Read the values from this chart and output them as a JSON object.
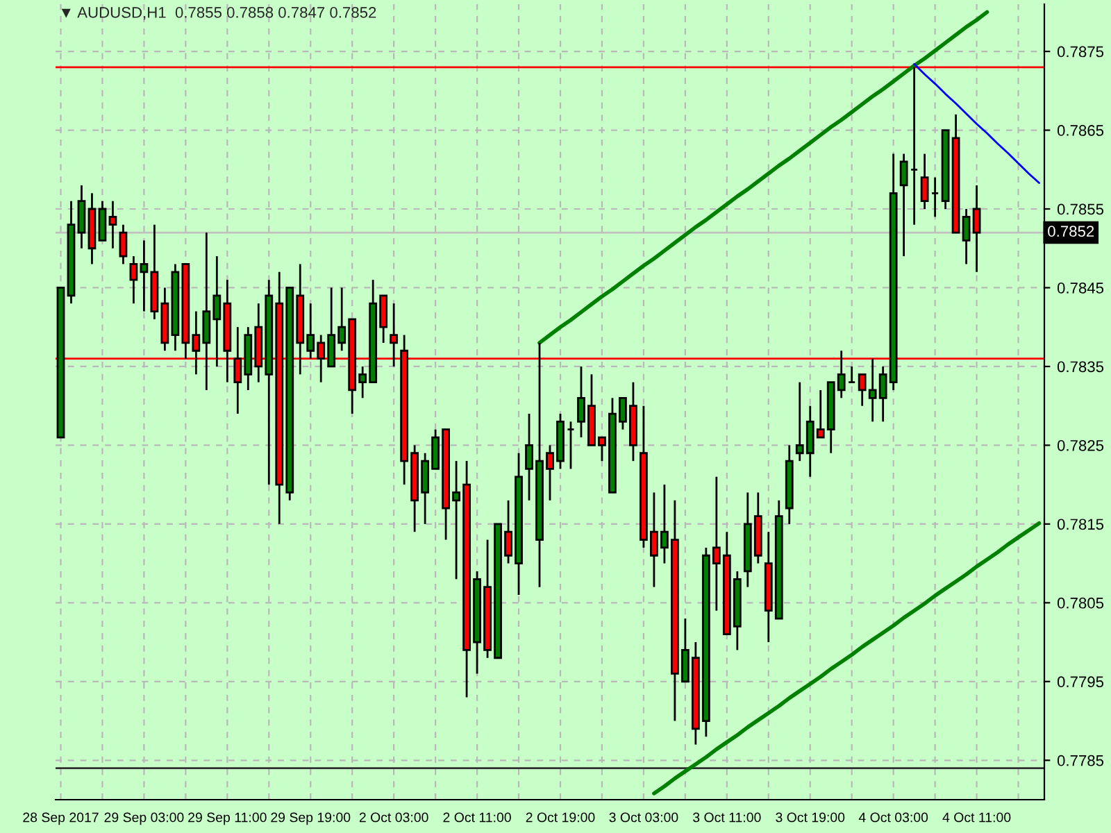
{
  "chart_data": {
    "type": "candlestick",
    "title": "▼ AUDUSD,H1  0.7855 0.7858 0.7847 0.7852",
    "categories": [
      "28 Sep 2017",
      null,
      null,
      null,
      null,
      null,
      null,
      null,
      "29 Sep 03:00",
      null,
      null,
      null,
      null,
      null,
      null,
      null,
      "29 Sep 11:00",
      null,
      null,
      null,
      null,
      null,
      null,
      null,
      "29 Sep 19:00",
      null,
      null,
      null,
      null,
      null,
      null,
      null,
      "2 Oct 03:00",
      null,
      null,
      null,
      null,
      null,
      null,
      null,
      "2 Oct 11:00",
      null,
      null,
      null,
      null,
      null,
      null,
      null,
      "2 Oct 19:00",
      null,
      null,
      null,
      null,
      null,
      null,
      null,
      "3 Oct 03:00",
      null,
      null,
      null,
      null,
      null,
      null,
      null,
      "3 Oct 11:00",
      null,
      null,
      null,
      null,
      null,
      null,
      null,
      "3 Oct 19:00",
      null,
      null,
      null,
      null,
      null,
      null,
      null,
      "4 Oct 03:00",
      null,
      null,
      null,
      null,
      null,
      null,
      null,
      "4 Oct 11:00",
      null,
      null,
      null,
      null,
      null,
      null
    ],
    "ohlc": [
      [
        0.7826,
        0.7845,
        0.7826,
        0.7845
      ],
      [
        0.7844,
        0.7856,
        0.7843,
        0.7853
      ],
      [
        0.7852,
        0.7858,
        0.785,
        0.7856
      ],
      [
        0.7855,
        0.7857,
        0.7848,
        0.785
      ],
      [
        0.7851,
        0.7856,
        0.7851,
        0.7855
      ],
      [
        0.7854,
        0.7856,
        0.785,
        0.7853
      ],
      [
        0.7852,
        0.7853,
        0.7848,
        0.7849
      ],
      [
        0.7848,
        0.7849,
        0.7843,
        0.7846
      ],
      [
        0.7847,
        0.7851,
        0.7842,
        0.7848
      ],
      [
        0.7847,
        0.7853,
        0.7841,
        0.7842
      ],
      [
        0.7843,
        0.7845,
        0.7837,
        0.7838
      ],
      [
        0.7839,
        0.7848,
        0.7837,
        0.7847
      ],
      [
        0.7848,
        0.7848,
        0.7836,
        0.7838
      ],
      [
        0.7839,
        0.7842,
        0.7834,
        0.7837
      ],
      [
        0.7838,
        0.7852,
        0.7832,
        0.7842
      ],
      [
        0.7841,
        0.7849,
        0.7835,
        0.7844
      ],
      [
        0.7843,
        0.7846,
        0.7833,
        0.7837
      ],
      [
        0.7836,
        0.784,
        0.7829,
        0.7833
      ],
      [
        0.7834,
        0.784,
        0.7832,
        0.7839
      ],
      [
        0.784,
        0.7843,
        0.7833,
        0.7835
      ],
      [
        0.7834,
        0.7846,
        0.782,
        0.7844
      ],
      [
        0.7843,
        0.7847,
        0.7815,
        0.782
      ],
      [
        0.7819,
        0.7845,
        0.7818,
        0.7845
      ],
      [
        0.7844,
        0.7848,
        0.7834,
        0.7838
      ],
      [
        0.7837,
        0.7843,
        0.7836,
        0.7839
      ],
      [
        0.7838,
        0.7839,
        0.7833,
        0.7836
      ],
      [
        0.7835,
        0.7845,
        0.7835,
        0.7839
      ],
      [
        0.7838,
        0.7845,
        0.7837,
        0.784
      ],
      [
        0.7841,
        0.7841,
        0.7829,
        0.7832
      ],
      [
        0.7833,
        0.7835,
        0.7831,
        0.7834
      ],
      [
        0.7833,
        0.7846,
        0.7833,
        0.7843
      ],
      [
        0.7844,
        0.7844,
        0.7838,
        0.784
      ],
      [
        0.7839,
        0.7843,
        0.7835,
        0.7838
      ],
      [
        0.7837,
        0.7839,
        0.782,
        0.7823
      ],
      [
        0.7824,
        0.7825,
        0.7814,
        0.7818
      ],
      [
        0.7819,
        0.7824,
        0.7815,
        0.7823
      ],
      [
        0.7822,
        0.7827,
        0.7822,
        0.7826
      ],
      [
        0.7827,
        0.7827,
        0.7813,
        0.7817
      ],
      [
        0.7818,
        0.7823,
        0.7808,
        0.7819
      ],
      [
        0.782,
        0.7823,
        0.7793,
        0.7799
      ],
      [
        0.78,
        0.7809,
        0.7796,
        0.7808
      ],
      [
        0.7807,
        0.7813,
        0.7798,
        0.7799
      ],
      [
        0.7798,
        0.7815,
        0.7798,
        0.7815
      ],
      [
        0.7814,
        0.7818,
        0.781,
        0.7811
      ],
      [
        0.781,
        0.7824,
        0.7806,
        0.7821
      ],
      [
        0.7822,
        0.7829,
        0.7818,
        0.7825
      ],
      [
        0.7813,
        0.7838,
        0.7807,
        0.7823
      ],
      [
        0.7824,
        0.7825,
        0.7818,
        0.7822
      ],
      [
        0.7823,
        0.7829,
        0.7822,
        0.7828
      ],
      [
        0.7827,
        0.7828,
        0.7822,
        0.7827
      ],
      [
        0.7828,
        0.7835,
        0.7826,
        0.7831
      ],
      [
        0.783,
        0.7834,
        0.7825,
        0.7825
      ],
      [
        0.7826,
        0.7826,
        0.7823,
        0.7825
      ],
      [
        0.7819,
        0.7831,
        0.7819,
        0.7829
      ],
      [
        0.7828,
        0.7831,
        0.7827,
        0.7831
      ],
      [
        0.783,
        0.7833,
        0.7823,
        0.7825
      ],
      [
        0.7824,
        0.783,
        0.7812,
        0.7813
      ],
      [
        0.7814,
        0.7819,
        0.7807,
        0.7811
      ],
      [
        0.7812,
        0.782,
        0.781,
        0.7814
      ],
      [
        0.7813,
        0.7818,
        0.779,
        0.7796
      ],
      [
        0.7795,
        0.7803,
        0.7795,
        0.7799
      ],
      [
        0.7798,
        0.78,
        0.7787,
        0.7789
      ],
      [
        0.779,
        0.7812,
        0.7788,
        0.7811
      ],
      [
        0.7812,
        0.7821,
        0.7804,
        0.781
      ],
      [
        0.7811,
        0.7814,
        0.7801,
        0.7801
      ],
      [
        0.7802,
        0.7809,
        0.7799,
        0.7808
      ],
      [
        0.7809,
        0.7819,
        0.7807,
        0.7815
      ],
      [
        0.7816,
        0.7819,
        0.781,
        0.7811
      ],
      [
        0.781,
        0.7814,
        0.78,
        0.7804
      ],
      [
        0.7803,
        0.7818,
        0.7803,
        0.7816
      ],
      [
        0.7817,
        0.7825,
        0.7815,
        0.7823
      ],
      [
        0.7824,
        0.7833,
        0.7823,
        0.7825
      ],
      [
        0.7824,
        0.783,
        0.7821,
        0.7828
      ],
      [
        0.7827,
        0.7832,
        0.7826,
        0.7826
      ],
      [
        0.7827,
        0.7833,
        0.7824,
        0.7833
      ],
      [
        0.7832,
        0.7837,
        0.7831,
        0.7834
      ],
      [
        0.7833,
        0.7835,
        0.7833,
        0.7833
      ],
      [
        0.7834,
        0.7834,
        0.783,
        0.7832
      ],
      [
        0.7831,
        0.7836,
        0.7828,
        0.7832
      ],
      [
        0.7831,
        0.7835,
        0.7828,
        0.7834
      ],
      [
        0.7833,
        0.7862,
        0.7832,
        0.7857
      ],
      [
        0.7858,
        0.7862,
        0.7849,
        0.7861
      ],
      [
        0.786,
        0.7873,
        0.7853,
        0.786
      ],
      [
        0.7859,
        0.7862,
        0.7855,
        0.7856
      ],
      [
        0.7857,
        0.7859,
        0.7854,
        0.7857
      ],
      [
        0.7856,
        0.7865,
        0.7855,
        0.7865
      ],
      [
        0.7864,
        0.7867,
        0.7852,
        0.7852
      ],
      [
        0.7851,
        0.7855,
        0.7848,
        0.7854
      ],
      [
        0.7855,
        0.7858,
        0.7847,
        0.7852
      ],
      null,
      null,
      null,
      null,
      null,
      null
    ],
    "colors": [
      "#008000",
      "#008000",
      "#008000",
      "#ff0000",
      "#008000",
      "#ff0000",
      "#ff0000",
      "#ff0000",
      "#008000",
      "#ff0000",
      "#ff0000",
      "#008000",
      "#ff0000",
      "#ff0000",
      "#008000",
      "#008000",
      "#ff0000",
      "#ff0000",
      "#008000",
      "#ff0000",
      "#008000",
      "#ff0000",
      "#008000",
      "#ff0000",
      "#008000",
      "#ff0000",
      "#008000",
      "#008000",
      "#ff0000",
      "#008000",
      "#008000",
      "#ff0000",
      "#ff0000",
      "#ff0000",
      "#ff0000",
      "#008000",
      "#008000",
      "#ff0000",
      "#008000",
      "#ff0000",
      "#008000",
      "#ff0000",
      "#008000",
      "#ff0000",
      "#008000",
      "#008000",
      "#008000",
      "#ff0000",
      "#008000",
      "#000000",
      "#008000",
      "#ff0000",
      "#ff0000",
      "#008000",
      "#008000",
      "#ff0000",
      "#ff0000",
      "#ff0000",
      "#008000",
      "#ff0000",
      "#008000",
      "#ff0000",
      "#008000",
      "#ff0000",
      "#ff0000",
      "#008000",
      "#008000",
      "#ff0000",
      "#ff0000",
      "#008000",
      "#008000",
      "#008000",
      "#008000",
      "#ff0000",
      "#008000",
      "#008000",
      "#000000",
      "#ff0000",
      "#008000",
      "#008000",
      "#008000",
      "#008000",
      "#000000",
      "#ff0000",
      "#000000",
      "#008000",
      "#ff0000",
      "#008000",
      "#ff0000",
      null,
      null,
      null,
      null,
      null,
      null
    ],
    "series": [
      {
        "type": "line",
        "color": "#008000",
        "values": [
          null,
          null,
          null,
          null,
          null,
          null,
          null,
          null,
          null,
          null,
          null,
          null,
          null,
          null,
          null,
          null,
          null,
          null,
          null,
          null,
          null,
          null,
          null,
          null,
          null,
          null,
          null,
          null,
          null,
          null,
          null,
          null,
          null,
          null,
          null,
          null,
          null,
          null,
          null,
          null,
          null,
          null,
          null,
          null,
          null,
          null,
          0.7838,
          0.7839,
          0.784,
          0.78409,
          0.78419,
          0.78429,
          0.78439,
          0.78448,
          0.78458,
          0.78468,
          0.78478,
          0.78487,
          0.78497,
          0.78507,
          0.78517,
          0.78527,
          0.78536,
          0.78546,
          0.78556,
          0.78566,
          0.78575,
          0.78585,
          0.78595,
          0.78605,
          0.78614,
          0.78624,
          0.78634,
          0.78644,
          0.78654,
          0.78663,
          0.78673,
          0.78683,
          0.78693,
          0.78702,
          0.78712,
          0.78722,
          0.78732,
          0.78741,
          0.78751,
          0.78761,
          0.78771,
          0.78781,
          0.7879,
          0.788,
          null,
          null,
          null,
          null,
          null
        ]
      },
      {
        "type": "line",
        "color": "#008000",
        "values": [
          null,
          null,
          null,
          null,
          null,
          null,
          null,
          null,
          null,
          null,
          null,
          null,
          null,
          null,
          null,
          null,
          null,
          null,
          null,
          null,
          null,
          null,
          null,
          null,
          null,
          null,
          null,
          null,
          null,
          null,
          null,
          null,
          null,
          null,
          null,
          null,
          null,
          null,
          null,
          null,
          null,
          null,
          null,
          null,
          null,
          null,
          null,
          null,
          null,
          null,
          null,
          null,
          null,
          null,
          null,
          null,
          null,
          0.77808,
          0.77817,
          0.77827,
          0.77836,
          0.77845,
          0.77854,
          0.77864,
          0.77873,
          0.77882,
          0.77892,
          0.77901,
          0.7791,
          0.77919,
          0.77929,
          0.77938,
          0.77947,
          0.77956,
          0.77966,
          0.77975,
          0.77984,
          0.77994,
          0.78003,
          0.78012,
          0.78021,
          0.78031,
          0.7804,
          0.78049,
          0.78059,
          0.78068,
          0.78077,
          0.78086,
          0.78096,
          0.78105,
          0.78114,
          0.78124,
          0.78133,
          0.78142,
          0.78151
        ]
      },
      {
        "type": "line",
        "color": "#0000ff",
        "values": [
          null,
          null,
          null,
          null,
          null,
          null,
          null,
          null,
          null,
          null,
          null,
          null,
          null,
          null,
          null,
          null,
          null,
          null,
          null,
          null,
          null,
          null,
          null,
          null,
          null,
          null,
          null,
          null,
          null,
          null,
          null,
          null,
          null,
          null,
          null,
          null,
          null,
          null,
          null,
          null,
          null,
          null,
          null,
          null,
          null,
          null,
          null,
          null,
          null,
          null,
          null,
          null,
          null,
          null,
          null,
          null,
          null,
          null,
          null,
          null,
          null,
          null,
          null,
          null,
          null,
          null,
          null,
          null,
          null,
          null,
          null,
          null,
          null,
          null,
          null,
          null,
          null,
          null,
          null,
          null,
          null,
          null,
          0.78734,
          0.78721,
          0.78709,
          0.78696,
          0.78684,
          0.78671,
          0.78658,
          0.78646,
          0.78633,
          0.78621,
          0.78608,
          0.78595,
          0.78583
        ]
      }
    ],
    "ylim": [
      0.778,
      0.7881
    ],
    "yticks": [
      0.7785,
      0.7795,
      0.7805,
      0.7815,
      0.7825,
      0.7835,
      0.7845,
      0.7855,
      0.7865,
      0.7875
    ],
    "grid": true,
    "ref_lines": [
      {
        "axis": "y",
        "value": 0.7873,
        "color": "#ff0000"
      },
      {
        "axis": "y",
        "value": 0.7836,
        "color": "#ff0000"
      },
      {
        "axis": "y",
        "value": 0.7852,
        "color": "#c0c0c0",
        "label": "0.7852"
      },
      {
        "axis": "y",
        "value": 0.7784,
        "color": "#303030"
      }
    ]
  }
}
